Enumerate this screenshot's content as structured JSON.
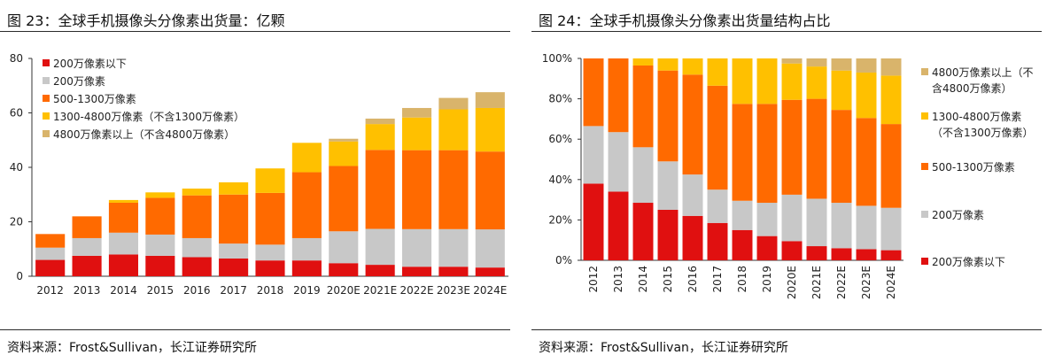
{
  "left": {
    "title": "图 23：全球手机摄像头分像素出货量：亿颗",
    "source": "资料来源：Frost&Sullivan，长江证券研究所"
  },
  "right": {
    "title": "图 24：全球手机摄像头分像素出货量结构占比",
    "source": "资料来源：Frost&Sullivan，长江证券研究所"
  },
  "chart_data": [
    {
      "type": "bar",
      "stacked": true,
      "categories": [
        "2012",
        "2013",
        "2014",
        "2015",
        "2016",
        "2017",
        "2018",
        "2019",
        "2020E",
        "2021E",
        "2022E",
        "2023E",
        "2024E"
      ],
      "ylim": [
        0,
        80
      ],
      "yticks": [
        0,
        20,
        40,
        60,
        80
      ],
      "legend_position": "top-left",
      "grid": false,
      "series": [
        {
          "name": "200万像素以下",
          "color": "#e01010",
          "values": [
            6,
            7.5,
            8,
            7.5,
            7,
            6.5,
            5.8,
            5.8,
            4.8,
            4.2,
            3.5,
            3.5,
            3.2
          ]
        },
        {
          "name": "200万像素",
          "color": "#c8c8c8",
          "values": [
            4.5,
            6.5,
            8,
            7.8,
            7,
            5.5,
            5.8,
            8.2,
            11.7,
            13.2,
            13.8,
            13.8,
            14
          ]
        },
        {
          "name": "500-1300万像素",
          "color": "#ff6a00",
          "values": [
            5,
            8,
            11,
            13.5,
            15.7,
            18,
            19,
            24.2,
            24,
            29,
            29,
            29,
            28.6
          ]
        },
        {
          "name": "1300-4800万像素（不含1300万像素）",
          "color": "#ffc000",
          "values": [
            0,
            0,
            1,
            2,
            2.5,
            4.5,
            9,
            10.8,
            9,
            9.5,
            12,
            15,
            16
          ]
        },
        {
          "name": "4800万像素以上（不含4800万像素）",
          "color": "#d9b46b",
          "values": [
            0,
            0,
            0,
            0,
            0,
            0,
            0,
            0,
            1,
            2,
            3.5,
            4.2,
            5.8
          ]
        }
      ]
    },
    {
      "type": "bar",
      "stacked": true,
      "categories": [
        "2012",
        "2013",
        "2014",
        "2015",
        "2016",
        "2017",
        "2018",
        "2019",
        "2020E",
        "2021E",
        "2022E",
        "2023E",
        "2024E"
      ],
      "ylim": [
        0,
        100
      ],
      "yticks": [
        "0%",
        "20%",
        "40%",
        "60%",
        "80%",
        "100%"
      ],
      "legend_position": "right",
      "grid": false,
      "series": [
        {
          "name": "200万像素以下",
          "color": "#e01010",
          "values": [
            38,
            34,
            28.5,
            25,
            22,
            18.5,
            15,
            12,
            9.5,
            7,
            6,
            5.5,
            5
          ]
        },
        {
          "name": "200万像素",
          "color": "#c8c8c8",
          "values": [
            28.5,
            29.5,
            27.5,
            24,
            20.5,
            16.5,
            14.5,
            16.5,
            23,
            23.5,
            22.5,
            21.5,
            21
          ]
        },
        {
          "name": "500-1300万像素",
          "color": "#ff6a00",
          "values": [
            33.5,
            36.5,
            40.5,
            45,
            49.5,
            51.5,
            48,
            49,
            47,
            49.5,
            46,
            43.5,
            41.5
          ]
        },
        {
          "name": "1300-4800万像素（不含1300万像素）",
          "color": "#ffc000",
          "values": [
            0,
            0,
            3.5,
            6,
            8,
            13.5,
            22.5,
            22.5,
            18,
            16,
            19.5,
            22.5,
            24
          ]
        },
        {
          "name": "4800万像素以上（不含4800万像素）",
          "color": "#d9b46b",
          "values": [
            0,
            0,
            0,
            0,
            0,
            0,
            0,
            0,
            2.5,
            4,
            6,
            7,
            8.5
          ]
        }
      ]
    }
  ]
}
